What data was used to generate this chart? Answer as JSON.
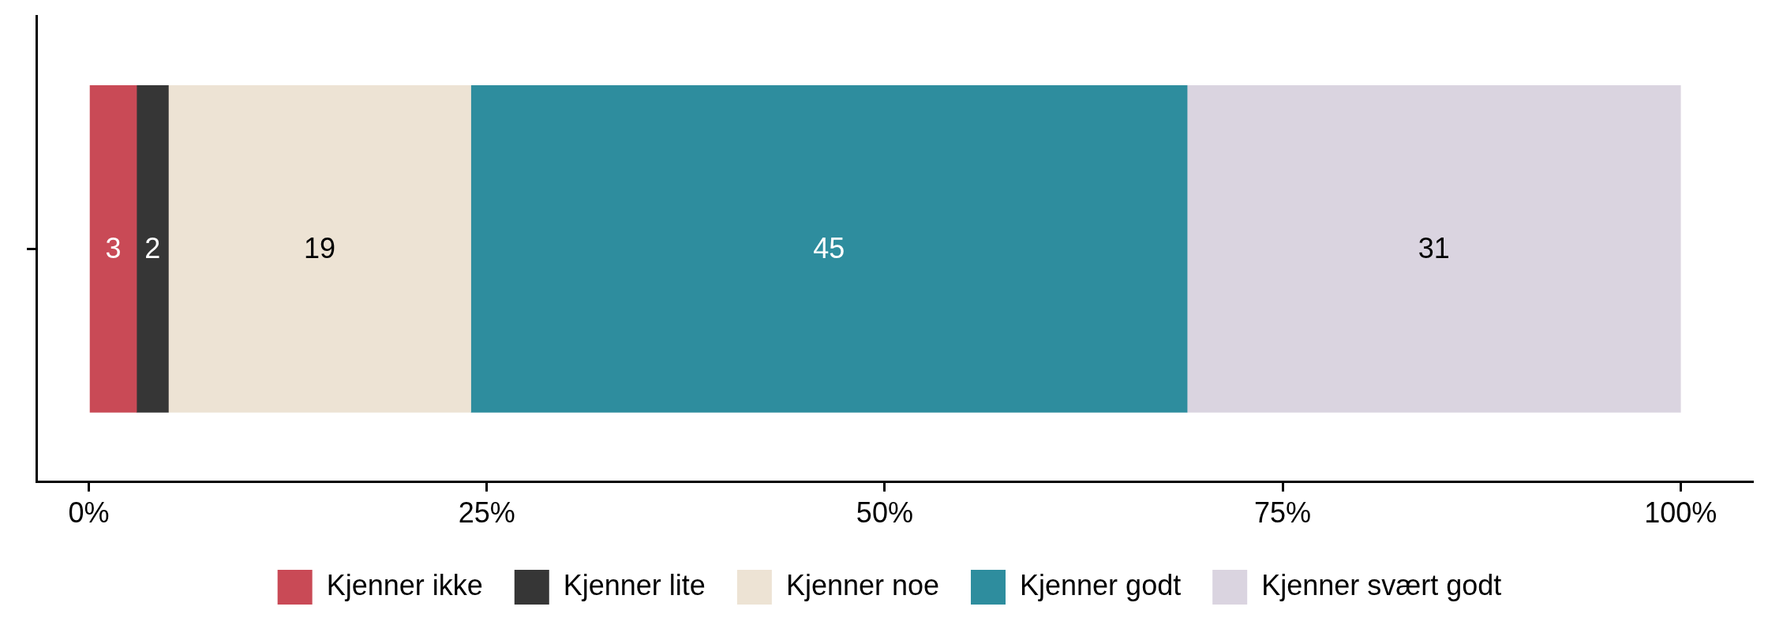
{
  "chart_data": {
    "type": "bar",
    "orientation": "horizontal",
    "stacked": true,
    "categories": [
      null
    ],
    "series": [
      {
        "name": "Kjenner ikke",
        "color": "#c94a56",
        "values": [
          3
        ]
      },
      {
        "name": "Kjenner lite",
        "color": "#363636",
        "values": [
          2
        ]
      },
      {
        "name": "Kjenner noe",
        "color": "#ede3d4",
        "values": [
          19
        ]
      },
      {
        "name": "Kjenner godt",
        "color": "#2e8d9e",
        "values": [
          45
        ]
      },
      {
        "name": "Kjenner svært godt",
        "color": "#dad4e0",
        "values": [
          31
        ]
      }
    ],
    "xlim": [
      -3.3,
      104.5
    ],
    "xticks": [
      {
        "value": 0,
        "label": "0%"
      },
      {
        "value": 25,
        "label": "25%"
      },
      {
        "value": 50,
        "label": "50%"
      },
      {
        "value": 75,
        "label": "75%"
      },
      {
        "value": 100,
        "label": "100%"
      }
    ],
    "data_labels": true,
    "grid": false,
    "legend": "bottom",
    "tick_labels": "x"
  }
}
